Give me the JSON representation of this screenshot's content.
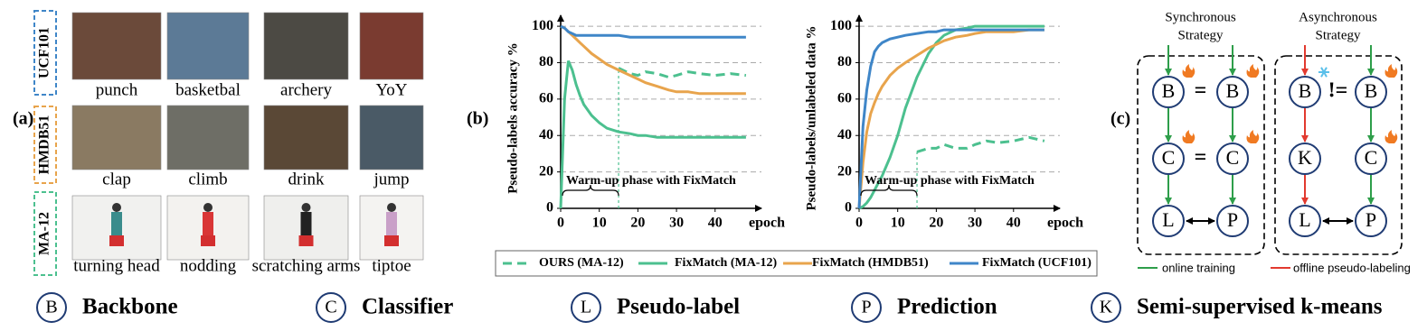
{
  "panel_labels": [
    "(a)",
    "(b)",
    "(c)"
  ],
  "panel_a": {
    "rows": [
      {
        "dataset": "UCF101",
        "color": "#3f86c8",
        "clips": [
          "punch",
          "basketbal",
          "archery",
          "YoY"
        ]
      },
      {
        "dataset": "HMDB51",
        "color": "#e8a44c",
        "clips": [
          "clap",
          "climb",
          "drink",
          "jump"
        ]
      },
      {
        "dataset": "MA-12",
        "color": "#4cc08f",
        "clips": [
          "turning head",
          "nodding",
          "scratching arms",
          "tiptoe"
        ]
      }
    ]
  },
  "chart_data": [
    {
      "type": "line",
      "y_label": "Pseudo-labels accuracy %",
      "x_label": "epoch",
      "annotation": "Warm-up phase with FixMatch",
      "x": [
        0,
        1,
        2,
        3,
        4,
        5,
        6,
        8,
        10,
        12,
        15,
        18,
        20,
        22,
        25,
        28,
        30,
        33,
        36,
        40,
        44,
        48
      ],
      "xlim": [
        0,
        52
      ],
      "xticks": [
        0,
        10,
        20,
        30,
        40
      ],
      "ylim": [
        0,
        105
      ],
      "yticks": [
        0,
        20,
        40,
        60,
        80,
        100
      ],
      "grid": true,
      "series": [
        {
          "name": "OURS (MA-12)",
          "color": "#4cc08f",
          "line_style": "dashed",
          "values": [
            null,
            null,
            null,
            null,
            null,
            null,
            null,
            null,
            null,
            null,
            77,
            74,
            73,
            75,
            74,
            72,
            73,
            75,
            74,
            73,
            74,
            73
          ]
        },
        {
          "name": "FixMatch (MA-12)",
          "color": "#4cc08f",
          "line_style": "solid",
          "values": [
            0,
            60,
            81,
            76,
            68,
            62,
            57,
            51,
            47,
            44,
            42,
            41,
            40,
            40,
            39,
            39,
            39,
            39,
            39,
            39,
            39,
            39
          ]
        },
        {
          "name": "FixMatch (HMDB51)",
          "color": "#e8a44c",
          "line_style": "solid",
          "values": [
            100,
            99,
            97,
            95,
            93,
            91,
            89,
            85,
            82,
            79,
            76,
            73,
            71,
            69,
            67,
            65,
            64,
            64,
            63,
            63,
            63,
            63
          ]
        },
        {
          "name": "FixMatch (UCF101)",
          "color": "#3f86c8",
          "line_style": "solid",
          "values": [
            100,
            99,
            97,
            96,
            95,
            95,
            95,
            95,
            95,
            95,
            95,
            94,
            94,
            94,
            94,
            94,
            94,
            94,
            94,
            94,
            94,
            94
          ]
        }
      ]
    },
    {
      "type": "line",
      "y_label": "Pseudo-labels/unlabeled data %",
      "x_label": "epoch",
      "annotation": "Warm-up phase with FixMatch",
      "x": [
        0,
        1,
        2,
        3,
        4,
        5,
        6,
        8,
        10,
        12,
        15,
        18,
        20,
        22,
        25,
        28,
        30,
        33,
        36,
        40,
        44,
        48
      ],
      "xlim": [
        0,
        52
      ],
      "xticks": [
        0,
        10,
        20,
        30,
        40
      ],
      "ylim": [
        0,
        105
      ],
      "yticks": [
        0,
        20,
        40,
        60,
        80,
        100
      ],
      "grid": true,
      "series": [
        {
          "color": "#4cc08f",
          "line_style": "dashed",
          "values": [
            null,
            null,
            null,
            null,
            null,
            null,
            null,
            null,
            null,
            null,
            31,
            33,
            33,
            35,
            33,
            33,
            35,
            37,
            36,
            37,
            39,
            37
          ]
        },
        {
          "color": "#4cc08f",
          "line_style": "solid",
          "values": [
            0,
            1,
            3,
            6,
            10,
            14,
            18,
            28,
            40,
            55,
            72,
            85,
            91,
            95,
            98,
            99,
            100,
            100,
            100,
            100,
            100,
            100
          ]
        },
        {
          "color": "#e8a44c",
          "line_style": "solid",
          "values": [
            0,
            25,
            42,
            52,
            58,
            63,
            67,
            73,
            77,
            80,
            84,
            88,
            90,
            92,
            94,
            95,
            96,
            97,
            97,
            97,
            98,
            98
          ]
        },
        {
          "color": "#3f86c8",
          "line_style": "solid",
          "values": [
            0,
            45,
            65,
            78,
            86,
            89,
            91,
            93,
            94,
            95,
            96,
            97,
            97,
            98,
            98,
            98,
            98,
            98,
            98,
            98,
            98,
            98
          ]
        }
      ]
    }
  ],
  "panel_c": {
    "strategies": [
      {
        "title": [
          "Synchronous",
          "Strategy"
        ],
        "nodes": [
          "B",
          "B",
          "C",
          "C",
          "L",
          "P"
        ],
        "relations": [
          "=",
          "="
        ]
      },
      {
        "title": [
          "Asynchronous",
          "Strategy"
        ],
        "nodes": [
          "B",
          "B",
          "K",
          "C",
          "L",
          "P"
        ],
        "relations": [
          "!="
        ]
      }
    ],
    "legend": [
      {
        "label": "online training",
        "color": "#2e9e4a"
      },
      {
        "label": "offline pseudo-labeling",
        "color": "#e23a2f"
      }
    ]
  },
  "key": [
    {
      "symbol": "B",
      "label": "Backbone"
    },
    {
      "symbol": "C",
      "label": "Classifier"
    },
    {
      "symbol": "L",
      "label": "Pseudo-label"
    },
    {
      "symbol": "P",
      "label": "Prediction"
    },
    {
      "symbol": "K",
      "label": "Semi-supervised k-means"
    }
  ]
}
